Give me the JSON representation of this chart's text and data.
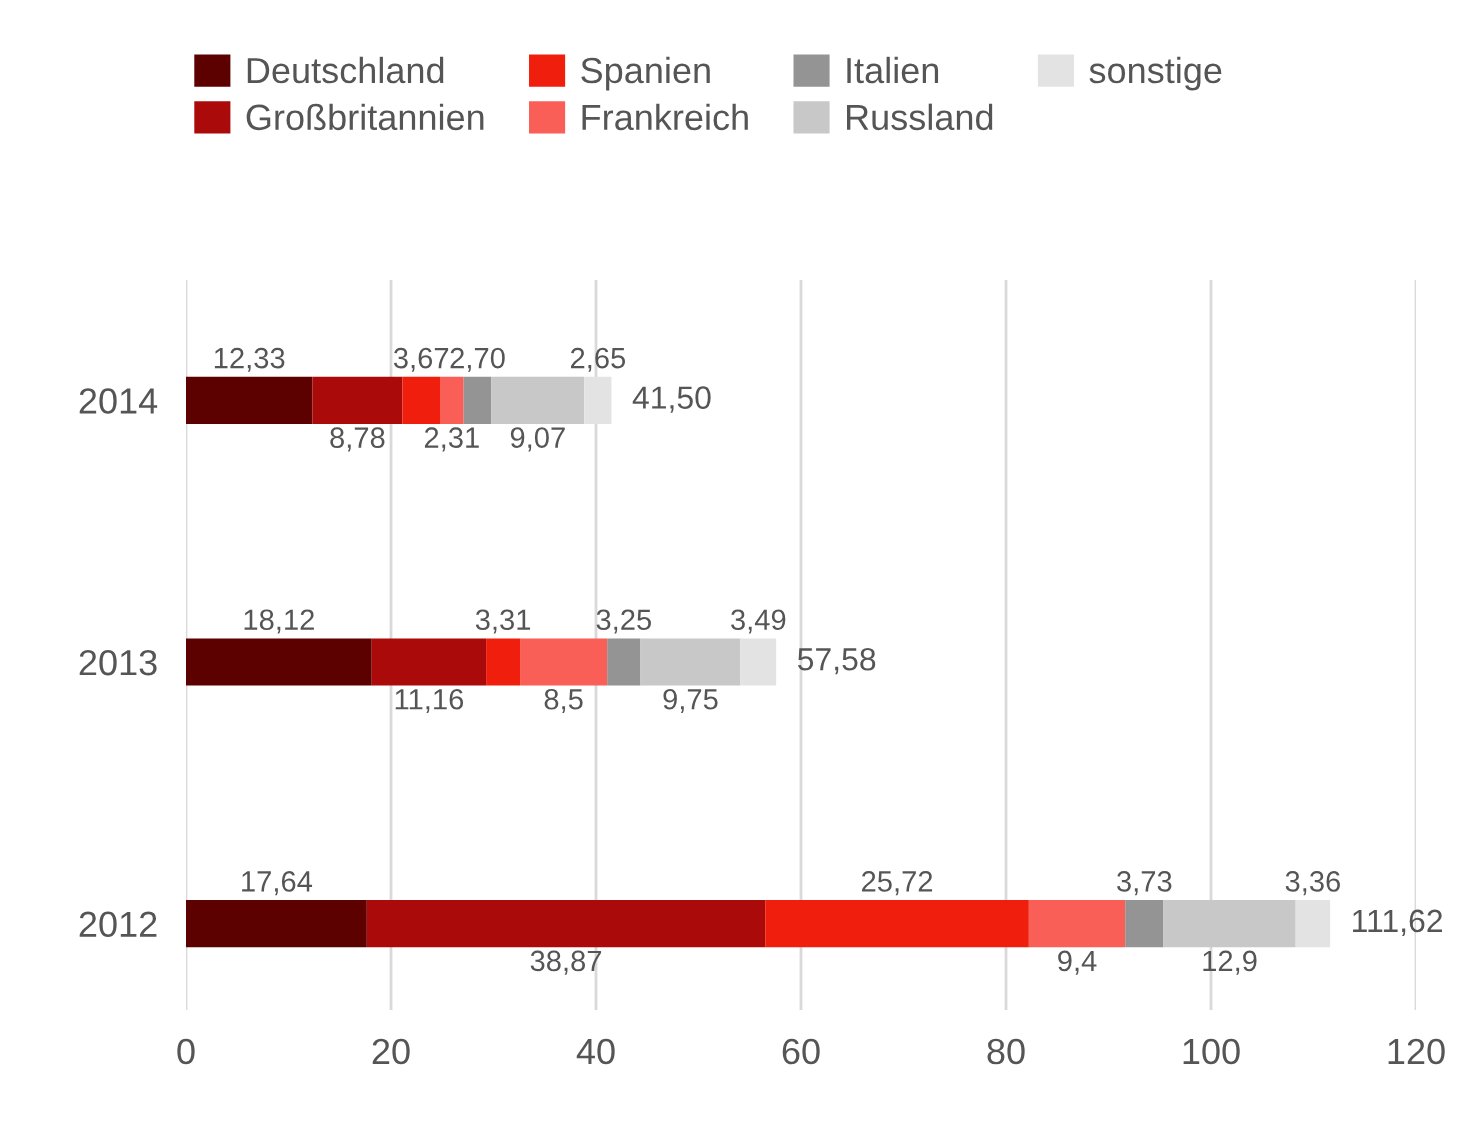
{
  "chart_data": {
    "type": "bar",
    "orientation": "horizontal",
    "stacked": true,
    "categories": [
      "2014",
      "2013",
      "2012"
    ],
    "series": [
      {
        "name": "Deutschland",
        "color": "#5c0000",
        "values": [
          12.33,
          18.12,
          17.64
        ],
        "value_labels": [
          "12,33",
          "18,12",
          "17,64"
        ]
      },
      {
        "name": "Großbritannien",
        "color": "#aa0a0a",
        "values": [
          8.78,
          11.16,
          38.87
        ],
        "value_labels": [
          "8,78",
          "11,16",
          "38,87"
        ]
      },
      {
        "name": "Spanien",
        "color": "#f01e0c",
        "values": [
          3.67,
          3.31,
          25.72
        ],
        "value_labels": [
          "3,67",
          "3,31",
          "25,72"
        ]
      },
      {
        "name": "Frankreich",
        "color": "#fa5f57",
        "values": [
          2.31,
          8.5,
          9.4
        ],
        "value_labels": [
          "2,31",
          "8,5",
          "9,4"
        ]
      },
      {
        "name": "Italien",
        "color": "#949494",
        "values": [
          2.7,
          3.25,
          3.73
        ],
        "value_labels": [
          "2,70",
          "3,25",
          "3,73"
        ]
      },
      {
        "name": "Russland",
        "color": "#c8c8c8",
        "values": [
          9.07,
          9.75,
          12.9
        ],
        "value_labels": [
          "9,07",
          "9,75",
          "12,9"
        ]
      },
      {
        "name": "sonstige",
        "color": "#e3e3e3",
        "values": [
          2.65,
          3.49,
          3.36
        ],
        "value_labels": [
          "2,65",
          "3,49",
          "3,36"
        ]
      }
    ],
    "totals": [
      "41,50",
      "57,58",
      "111,62"
    ],
    "xlim": [
      0,
      120
    ],
    "xticks": [
      0,
      20,
      40,
      60,
      80,
      100,
      120
    ],
    "grid": "x",
    "legend": "top"
  }
}
